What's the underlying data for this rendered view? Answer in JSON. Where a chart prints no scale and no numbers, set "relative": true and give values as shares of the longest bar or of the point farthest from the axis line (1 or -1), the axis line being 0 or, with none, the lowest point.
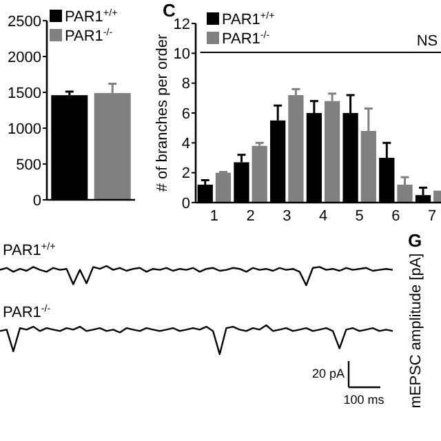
{
  "chart_data": [
    {
      "type": "bar",
      "categories": [
        null
      ],
      "series": [
        {
          "name": "PAR1$^{+/+}$",
          "color": "#000000",
          "values": [
            1460
          ],
          "errors": [
            50
          ]
        },
        {
          "name": "PAR1$^{-/-}$",
          "color": "#808080",
          "values": [
            1490
          ],
          "errors": [
            130
          ]
        }
      ],
      "ylim": [
        0,
        2500
      ],
      "yticks": [
        0,
        500,
        1000,
        1500,
        2000,
        2500
      ],
      "legend": "top"
    },
    {
      "type": "bar",
      "title": "C",
      "ylabel": "# of branches per order",
      "categories": [
        "1",
        "2",
        "3",
        "4",
        "5",
        "6",
        "7"
      ],
      "series": [
        {
          "name": "PAR1$^{+/+}$",
          "color": "#000000",
          "values": [
            1.2,
            2.7,
            5.5,
            6.0,
            6.0,
            3.0,
            0.5
          ],
          "errors": [
            0.3,
            0.5,
            1.0,
            0.8,
            1.2,
            1.0,
            0.5
          ]
        },
        {
          "name": "PAR1$^{-/-}$",
          "color": "#808080",
          "values": [
            2.0,
            3.8,
            7.2,
            6.8,
            4.8,
            1.2,
            0.8
          ],
          "errors": [
            0.05,
            0.2,
            0.4,
            0.5,
            1.5,
            0.5,
            null
          ]
        }
      ],
      "ylim": [
        0,
        12
      ],
      "yticks": [
        0,
        2,
        4,
        6,
        8,
        10,
        12
      ],
      "legend": "top left",
      "annotations": [
        "NS"
      ]
    },
    {
      "type": "line",
      "title": "PAR1$^{+/+}$",
      "relative": true,
      "categories": [
        null,
        null,
        null,
        null,
        null,
        null,
        null,
        null,
        null,
        null,
        null,
        null,
        null,
        null,
        null,
        null,
        null,
        null,
        null,
        null,
        null,
        null,
        null,
        null,
        null,
        null,
        null,
        null,
        null,
        null,
        null,
        null,
        null,
        null,
        null,
        null,
        null,
        null,
        null,
        null,
        null,
        null,
        null,
        null,
        null,
        null,
        null,
        null,
        null,
        null,
        null,
        null,
        null,
        null,
        null,
        null,
        null,
        null,
        null,
        null
      ],
      "series": [
        {
          "color": "#000000",
          "values": [
            0.8,
            0.9,
            0.7,
            0.85,
            0.75,
            0.95,
            0.8,
            0.7,
            0.9,
            0.8,
            0.85,
            0.05,
            0.8,
            0.1,
            0.95,
            0.85,
            1.0,
            0.8,
            0.9,
            0.75,
            0.85,
            0.9,
            0.7,
            0.85,
            0.8,
            0.9,
            0.75,
            0.85,
            0.8,
            0.9,
            0.7,
            0.85,
            0.9,
            0.75,
            0.8,
            0.9,
            0.85,
            0.7,
            0.9,
            0.8,
            0.85,
            0.75,
            0.9,
            0.8,
            0.85,
            0.7,
            0.0,
            0.9,
            0.95,
            0.8,
            0.85,
            0.75,
            0.9,
            0.8,
            0.85,
            0.9,
            0.75,
            0.8,
            0.85,
            0.8
          ]
        }
      ]
    },
    {
      "type": "line",
      "title": "PAR1$^{-/-}$",
      "relative": true,
      "categories": [
        null,
        null,
        null,
        null,
        null,
        null,
        null,
        null,
        null,
        null,
        null,
        null,
        null,
        null,
        null,
        null,
        null,
        null,
        null,
        null,
        null,
        null,
        null,
        null,
        null,
        null,
        null,
        null,
        null,
        null,
        null,
        null,
        null,
        null,
        null,
        null,
        null,
        null,
        null,
        null,
        null,
        null,
        null,
        null,
        null,
        null,
        null,
        null,
        null,
        null,
        null,
        null,
        null,
        null,
        null,
        null,
        null,
        null,
        null,
        null
      ],
      "series": [
        {
          "color": "#000000",
          "values": [
            0.8,
            0.85,
            0.1,
            0.9,
            0.85,
            0.95,
            0.8,
            0.9,
            0.85,
            0.8,
            0.9,
            0.85,
            0.95,
            0.8,
            0.85,
            0.9,
            0.8,
            0.85,
            0.75,
            0.9,
            0.85,
            0.8,
            0.9,
            0.85,
            0.8,
            0.85,
            0.9,
            0.8,
            0.85,
            0.9,
            0.85,
            0.95,
            0.8,
            0.0,
            0.9,
            0.95,
            0.85,
            0.8,
            0.9,
            0.85,
            1.0,
            0.8,
            0.85,
            0.9,
            0.8,
            0.85,
            0.9,
            0.8,
            0.85,
            0.9,
            0.8,
            0.2,
            0.85,
            0.9,
            0.8,
            0.85,
            0.9,
            0.8,
            0.85,
            0.8
          ]
        }
      ],
      "annotations": [
        "20 pA",
        "100 ms"
      ]
    },
    {
      "type": "other",
      "title": "G",
      "ylabel": "mEPSC amplitude [pA]"
    }
  ]
}
